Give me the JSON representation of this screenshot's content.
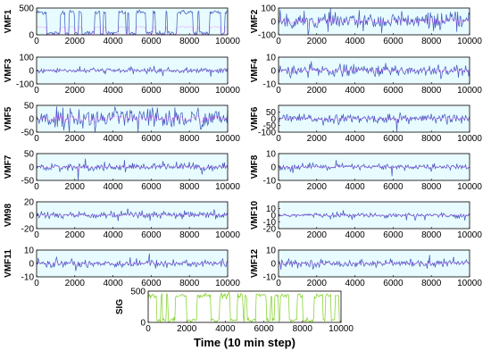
{
  "chart_data": [
    {
      "type": "line",
      "ylabel": "VMF1",
      "xlim": [
        0,
        10000
      ],
      "ylim": [
        0,
        500
      ],
      "yticks": [
        0,
        500
      ],
      "xticks": [
        0,
        2000,
        4000,
        6000,
        8000,
        10000
      ],
      "tick_labels_x": [
        "0",
        "2000",
        "4000",
        "6000",
        "8000",
        "10000"
      ],
      "tick_labels_y": [
        "0",
        "500"
      ],
      "series": [
        {
          "values": [],
          "color": "#3b5bbd"
        }
      ],
      "signal": {
        "kind": "block",
        "lo": 30,
        "hi": 420,
        "noise": 20
      }
    },
    {
      "type": "line",
      "ylabel": "VMF2",
      "xlim": [
        0,
        10000
      ],
      "ylim": [
        -100,
        100
      ],
      "yticks": [
        -100,
        0,
        100
      ],
      "xticks": [
        0,
        2000,
        4000,
        6000,
        8000,
        10000
      ],
      "tick_labels_x": [
        "0",
        "2000",
        "4000",
        "6000",
        "8000",
        "10000"
      ],
      "tick_labels_y": [
        "-100",
        "0",
        "100"
      ],
      "series": [
        {
          "values": [],
          "color": "#3b5bbd"
        }
      ],
      "signal": {
        "kind": "noise",
        "amp": 55
      }
    },
    {
      "type": "line",
      "ylabel": "VMF3",
      "xlim": [
        0,
        10000
      ],
      "ylim": [
        -100,
        100
      ],
      "yticks": [
        -100,
        0,
        100
      ],
      "xticks": [
        0,
        2000,
        4000,
        6000,
        8000,
        10000
      ],
      "tick_labels_x": [
        "0",
        "2000",
        "4000",
        "6000",
        "8000",
        "10000"
      ],
      "tick_labels_y": [
        "-100",
        "0",
        "100"
      ],
      "series": [
        {
          "values": [],
          "color": "#3b5bbd"
        }
      ],
      "signal": {
        "kind": "noise",
        "amp": 18
      }
    },
    {
      "type": "line",
      "ylabel": "VMF4",
      "xlim": [
        0,
        10000
      ],
      "ylim": [
        -10,
        10
      ],
      "yticks": [
        -10,
        0,
        10
      ],
      "xticks": [
        0,
        2000,
        4000,
        6000,
        8000,
        10000
      ],
      "tick_labels_x": [
        "0",
        "2000",
        "4000",
        "6000",
        "8000",
        "10000"
      ],
      "tick_labels_y": [
        "-10",
        "0",
        "10"
      ],
      "series": [
        {
          "values": [],
          "color": "#3b5bbd"
        }
      ],
      "signal": {
        "kind": "noise",
        "amp": 4
      }
    },
    {
      "type": "line",
      "ylabel": "VMF5",
      "xlim": [
        0,
        10000
      ],
      "ylim": [
        -50,
        50
      ],
      "yticks": [
        -50,
        0,
        50
      ],
      "xticks": [
        0,
        2000,
        4000,
        6000,
        8000,
        10000
      ],
      "tick_labels_x": [
        "0",
        "2000",
        "4000",
        "6000",
        "8000",
        "10000"
      ],
      "tick_labels_y": [
        "-50",
        "0",
        "50"
      ],
      "series": [
        {
          "values": [],
          "color": "#3b5bbd"
        }
      ],
      "signal": {
        "kind": "noise",
        "amp": 35
      }
    },
    {
      "type": "line",
      "ylabel": "VMF6",
      "xlim": [
        0,
        10000
      ],
      "ylim": [
        -100,
        100
      ],
      "yticks": [
        -100,
        -50,
        0,
        50
      ],
      "xticks": [
        0,
        2000,
        4000,
        6000,
        8000,
        10000
      ],
      "tick_labels_x": [
        "0",
        "2000",
        "4000",
        "6000",
        "8000",
        "10000"
      ],
      "tick_labels_y": [
        "-100",
        "-50",
        "0",
        "50"
      ],
      "series": [
        {
          "values": [],
          "color": "#3b5bbd"
        }
      ],
      "signal": {
        "kind": "noise",
        "amp": 30
      }
    },
    {
      "type": "line",
      "ylabel": "VMF7",
      "xlim": [
        0,
        10000
      ],
      "ylim": [
        -50,
        50
      ],
      "yticks": [
        -50,
        0,
        50
      ],
      "xticks": [
        0,
        2000,
        4000,
        6000,
        8000,
        10000
      ],
      "tick_labels_x": [
        "0",
        "2000",
        "4000",
        "6000",
        "8000",
        "10000"
      ],
      "tick_labels_y": [
        "-50",
        "0",
        "50"
      ],
      "series": [
        {
          "values": [],
          "color": "#3b5bbd"
        }
      ],
      "signal": {
        "kind": "noise",
        "amp": 12
      }
    },
    {
      "type": "line",
      "ylabel": "VMF8",
      "xlim": [
        0,
        10000
      ],
      "ylim": [
        -10,
        10
      ],
      "yticks": [
        -10,
        0,
        10
      ],
      "xticks": [
        0,
        2000,
        4000,
        6000,
        8000,
        10000
      ],
      "tick_labels_x": [
        "0",
        "2000",
        "4000",
        "6000",
        "8000",
        "10000"
      ],
      "tick_labels_y": [
        "-10",
        "0",
        "10"
      ],
      "series": [
        {
          "values": [],
          "color": "#3b5bbd"
        }
      ],
      "signal": {
        "kind": "noise",
        "amp": 2
      }
    },
    {
      "type": "line",
      "ylabel": "VM98",
      "xlim": [
        0,
        10000
      ],
      "ylim": [
        -20,
        20
      ],
      "yticks": [
        -20,
        0,
        20
      ],
      "xticks": [
        0,
        2000,
        4000,
        6000,
        8000,
        10000
      ],
      "tick_labels_x": [
        "0",
        "2000",
        "4000",
        "6000",
        "8000",
        "10000"
      ],
      "tick_labels_y": [
        "-20",
        "0",
        "20"
      ],
      "series": [
        {
          "values": [],
          "color": "#3b5bbd"
        }
      ],
      "signal": {
        "kind": "noise",
        "amp": 5
      }
    },
    {
      "type": "line",
      "ylabel": "VMF10",
      "xlim": [
        0,
        10000
      ],
      "ylim": [
        -20,
        20
      ],
      "yticks": [
        -20,
        -10,
        0,
        10
      ],
      "xticks": [
        0,
        2000,
        4000,
        6000,
        8000,
        10000
      ],
      "tick_labels_x": [
        "0",
        "2000",
        "4000",
        "6000",
        "8000",
        "10000"
      ],
      "tick_labels_y": [
        "-20",
        "-10",
        "0",
        "10"
      ],
      "series": [
        {
          "values": [],
          "color": "#3b5bbd"
        }
      ],
      "signal": {
        "kind": "noise",
        "amp": 3
      }
    },
    {
      "type": "line",
      "ylabel": "VMF11",
      "xlim": [
        0,
        10000
      ],
      "ylim": [
        -10,
        10
      ],
      "yticks": [
        -10,
        0,
        10
      ],
      "xticks": [
        0,
        2000,
        4000,
        6000,
        8000,
        10000
      ],
      "tick_labels_x": [
        "0",
        "2000",
        "4000",
        "6000",
        "8000",
        "10000"
      ],
      "tick_labels_y": [
        "-10",
        "0",
        "10"
      ],
      "series": [
        {
          "values": [],
          "color": "#3b5bbd"
        }
      ],
      "signal": {
        "kind": "noise",
        "amp": 3
      }
    },
    {
      "type": "line",
      "ylabel": "VMF12",
      "xlim": [
        0,
        10000
      ],
      "ylim": [
        -10,
        10
      ],
      "yticks": [
        -10,
        0,
        10
      ],
      "xticks": [
        0,
        2000,
        4000,
        6000,
        8000,
        10000
      ],
      "tick_labels_x": [
        "0",
        "2000",
        "4000",
        "6000",
        "8000",
        "10000"
      ],
      "tick_labels_y": [
        "-10",
        "0",
        "10"
      ],
      "series": [
        {
          "values": [],
          "color": "#3b5bbd"
        }
      ],
      "signal": {
        "kind": "noise",
        "amp": 2.5
      }
    },
    {
      "type": "line",
      "ylabel": "SIG",
      "xlim": [
        0,
        10000
      ],
      "ylim": [
        0,
        500
      ],
      "yticks": [
        0,
        500
      ],
      "xticks": [
        0,
        2000,
        4000,
        6000,
        8000,
        10000
      ],
      "tick_labels_x": [
        "0",
        "2000",
        "4000",
        "6000",
        "8000",
        "10000"
      ],
      "tick_labels_y": [
        "0",
        "500"
      ],
      "xlabel": "Time (10 min step)",
      "series": [
        {
          "values": [],
          "color": "#7ccf1e"
        }
      ],
      "signal": {
        "kind": "block",
        "lo": 30,
        "hi": 430,
        "noise": 20
      }
    }
  ],
  "colors": {
    "signal": "#3b5bbd",
    "overlay": "#ff00ff",
    "highlight": "#e8fbff",
    "sig": "#7ccf1e"
  }
}
